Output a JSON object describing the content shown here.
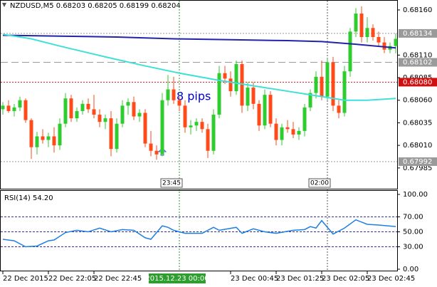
{
  "chart_data": {
    "type": "candlestick",
    "title": "NZDUSD,M5  0.68203 0.68205 0.68199 0.68204",
    "annotation": "8 pips",
    "bull_color": "#2ecc2e",
    "bear_color": "#ff4a1a",
    "ylim": [
      0.67962,
      0.68171
    ],
    "yticks": [
      {
        "value": 0.6816,
        "label": "0.68160"
      },
      {
        "value": 0.6811,
        "label": "0.68110"
      },
      {
        "value": 0.68085,
        "label": "0.68085"
      },
      {
        "value": 0.6806,
        "label": "0.68060"
      },
      {
        "value": 0.68035,
        "label": "0.68035"
      },
      {
        "value": 0.6801,
        "label": "0.68010"
      },
      {
        "value": 0.67985,
        "label": "0.67985"
      }
    ],
    "levels": [
      {
        "value": 0.68134,
        "label": "0.68134",
        "color": "#9a9a9a",
        "style": "dotted"
      },
      {
        "value": 0.68102,
        "label": "0.68102",
        "color": "#9a9a9a",
        "style": "dashed"
      },
      {
        "value": 0.6808,
        "label": "0.68080",
        "color": "#d01010",
        "style": "dotted"
      },
      {
        "value": 0.67992,
        "label": "0.67992",
        "color": "#9a9a9a",
        "style": "dotted"
      }
    ],
    "xticks": [
      {
        "value": 0,
        "label": "22 Dec 2015"
      },
      {
        "value": 8,
        "label": "22 Dec 22:05"
      },
      {
        "value": 16,
        "label": "22 Dec 22:45"
      },
      {
        "value": 40,
        "label": "23 Dec 00:45"
      },
      {
        "value": 48,
        "label": "23 Dec 01:25"
      },
      {
        "value": 56,
        "label": "23 Dec 02:05"
      },
      {
        "value": 64,
        "label": "23 Dec 02:45"
      }
    ],
    "cursor_label": "2015.12.23 00:00",
    "time_markers": [
      {
        "x": 31,
        "label": "23:45",
        "color": "#2e9e2e"
      },
      {
        "x": 57,
        "label": "02:00",
        "color": "#555555"
      }
    ],
    "ohlc": [
      [
        0.6805,
        0.68058,
        0.68044,
        0.68054
      ],
      [
        0.68054,
        0.6806,
        0.68046,
        0.68048
      ],
      [
        0.68048,
        0.68056,
        0.68042,
        0.68052
      ],
      [
        0.68052,
        0.68064,
        0.68048,
        0.6806
      ],
      [
        0.6806,
        0.68062,
        0.68035,
        0.68038
      ],
      [
        0.68038,
        0.6804,
        0.67995,
        0.68008
      ],
      [
        0.68008,
        0.68025,
        0.68,
        0.6802
      ],
      [
        0.6802,
        0.68028,
        0.68012,
        0.68016
      ],
      [
        0.68016,
        0.68024,
        0.68008,
        0.6802
      ],
      [
        0.6802,
        0.6803,
        0.68002,
        0.6801
      ],
      [
        0.6801,
        0.6804,
        0.68005,
        0.68034
      ],
      [
        0.68034,
        0.68068,
        0.6803,
        0.68062
      ],
      [
        0.68062,
        0.68066,
        0.68036,
        0.6804
      ],
      [
        0.6804,
        0.68052,
        0.68036,
        0.68048
      ],
      [
        0.68048,
        0.6806,
        0.68044,
        0.68056
      ],
      [
        0.68056,
        0.68062,
        0.68046,
        0.6805
      ],
      [
        0.6805,
        0.68066,
        0.6804,
        0.68044
      ],
      [
        0.68044,
        0.6805,
        0.6803,
        0.68036
      ],
      [
        0.68036,
        0.68044,
        0.68028,
        0.6804
      ],
      [
        0.6804,
        0.68048,
        0.67998,
        0.68006
      ],
      [
        0.68006,
        0.6804,
        0.68002,
        0.68034
      ],
      [
        0.68034,
        0.6806,
        0.6803,
        0.68054
      ],
      [
        0.68054,
        0.68062,
        0.68044,
        0.68058
      ],
      [
        0.68058,
        0.68064,
        0.68038,
        0.68042
      ],
      [
        0.68042,
        0.6805,
        0.68036,
        0.68046
      ],
      [
        0.68046,
        0.6805,
        0.68008,
        0.68012
      ],
      [
        0.68012,
        0.68026,
        0.67998,
        0.68004
      ],
      [
        0.68004,
        0.6801,
        0.67994,
        0.68
      ],
      [
        0.68,
        0.68068,
        0.67998,
        0.6806
      ],
      [
        0.6806,
        0.68088,
        0.68054,
        0.68072
      ],
      [
        0.68072,
        0.68086,
        0.68056,
        0.6806
      ],
      [
        0.6806,
        0.68064,
        0.68048,
        0.68054
      ],
      [
        0.68054,
        0.6806,
        0.68024,
        0.6803
      ],
      [
        0.6803,
        0.68038,
        0.68022,
        0.68032
      ],
      [
        0.68032,
        0.6804,
        0.68026,
        0.68036
      ],
      [
        0.68036,
        0.6804,
        0.68024,
        0.68028
      ],
      [
        0.68028,
        0.68034,
        0.67996,
        0.68004
      ],
      [
        0.68004,
        0.6805,
        0.68,
        0.68044
      ],
      [
        0.68044,
        0.68098,
        0.6804,
        0.6809
      ],
      [
        0.6809,
        0.68098,
        0.68078,
        0.68084
      ],
      [
        0.68084,
        0.68092,
        0.68064,
        0.6807
      ],
      [
        0.6807,
        0.68104,
        0.68066,
        0.681
      ],
      [
        0.681,
        0.68104,
        0.68046,
        0.68054
      ],
      [
        0.68054,
        0.6808,
        0.68048,
        0.68074
      ],
      [
        0.68074,
        0.6808,
        0.6805,
        0.68056
      ],
      [
        0.68056,
        0.6806,
        0.68026,
        0.68032
      ],
      [
        0.68032,
        0.68072,
        0.68028,
        0.68066
      ],
      [
        0.68066,
        0.6807,
        0.6803,
        0.68034
      ],
      [
        0.68034,
        0.6804,
        0.6801,
        0.68016
      ],
      [
        0.68016,
        0.68034,
        0.6801,
        0.6803
      ],
      [
        0.6803,
        0.68038,
        0.68024,
        0.68028
      ],
      [
        0.68028,
        0.68036,
        0.68018,
        0.68022
      ],
      [
        0.68022,
        0.6803,
        0.68016,
        0.68026
      ],
      [
        0.68026,
        0.68056,
        0.6802,
        0.68052
      ],
      [
        0.68052,
        0.68072,
        0.68048,
        0.68068
      ],
      [
        0.68068,
        0.68092,
        0.68062,
        0.68086
      ],
      [
        0.68086,
        0.68104,
        0.6806,
        0.68064
      ],
      [
        0.68064,
        0.68106,
        0.6806,
        0.68102
      ],
      [
        0.68102,
        0.68108,
        0.68048,
        0.68054
      ],
      [
        0.68054,
        0.6806,
        0.6804,
        0.68046
      ],
      [
        0.68046,
        0.68098,
        0.68042,
        0.68092
      ],
      [
        0.68092,
        0.6814,
        0.68086,
        0.68136
      ],
      [
        0.68136,
        0.68162,
        0.6813,
        0.68156
      ],
      [
        0.68156,
        0.68164,
        0.68124,
        0.6813
      ],
      [
        0.6813,
        0.68152,
        0.68124,
        0.6814
      ],
      [
        0.6814,
        0.68144,
        0.68126,
        0.6813
      ],
      [
        0.6813,
        0.68136,
        0.6812,
        0.68124
      ],
      [
        0.68124,
        0.6813,
        0.68112,
        0.68116
      ],
      [
        0.68116,
        0.68124,
        0.68112,
        0.6812
      ],
      [
        0.6812,
        0.68134,
        0.68112,
        0.68128
      ]
    ],
    "series": [
      {
        "color": "#2323a8",
        "x": [
          0,
          10,
          20,
          30,
          40,
          50,
          56,
          62,
          69
        ],
        "values": [
          0.68132,
          0.68131,
          0.6813,
          0.68128,
          0.68127,
          0.68126,
          0.68125,
          0.68122,
          0.68118
        ]
      },
      {
        "color": "#3fe0d8",
        "x": [
          0,
          5,
          10,
          18,
          25,
          31,
          38,
          44,
          50,
          56,
          60,
          64,
          69
        ],
        "values": [
          0.68133,
          0.68128,
          0.6812,
          0.68108,
          0.68098,
          0.6809,
          0.68082,
          0.68076,
          0.6807,
          0.68064,
          0.6806,
          0.6806,
          0.68062
        ]
      }
    ],
    "rsi": {
      "label": "RSI(14) 54.20",
      "color": "#1e7fe0",
      "ylim": [
        0,
        100
      ],
      "yticks": [
        {
          "value": 100,
          "label": "100.00"
        },
        {
          "value": 70,
          "label": "70.00"
        },
        {
          "value": 50,
          "label": "50.00"
        },
        {
          "value": 30,
          "label": "30.00"
        },
        {
          "value": 0,
          "label": "0.00"
        }
      ],
      "levels": [
        70,
        50,
        30
      ],
      "x": [
        0,
        2,
        4,
        6,
        8,
        9,
        11,
        13,
        15,
        17,
        19,
        21,
        23,
        25,
        26,
        28,
        29,
        30,
        32,
        35,
        37,
        38,
        41,
        42,
        44,
        46,
        48,
        51,
        53,
        54,
        55,
        56,
        58,
        60,
        62,
        64,
        66,
        69
      ],
      "values": [
        40,
        38,
        30,
        31,
        38,
        39,
        49,
        52,
        50,
        55,
        50,
        53,
        52,
        42,
        40,
        58,
        56,
        52,
        48,
        48,
        56,
        52,
        56,
        48,
        54,
        50,
        48,
        52,
        53,
        57,
        55,
        65,
        47,
        55,
        66,
        60,
        59,
        57
      ]
    }
  }
}
